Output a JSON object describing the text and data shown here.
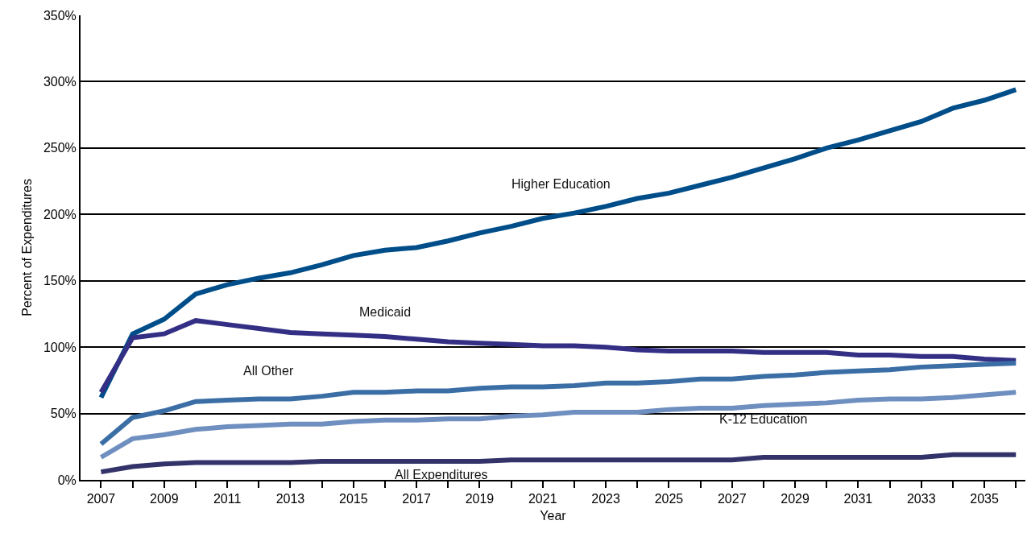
{
  "chart_data": {
    "type": "line",
    "xlabel": "Year",
    "ylabel": "Percent of Expenditures",
    "x": [
      2007,
      2008,
      2009,
      2010,
      2011,
      2012,
      2013,
      2014,
      2015,
      2016,
      2017,
      2018,
      2019,
      2020,
      2021,
      2022,
      2023,
      2024,
      2025,
      2026,
      2027,
      2028,
      2029,
      2030,
      2031,
      2032,
      2033,
      2034,
      2035,
      2036
    ],
    "series": [
      {
        "name": "Higher Education",
        "color": "#004e89",
        "values": [
          62,
          110,
          121,
          140,
          147,
          152,
          156,
          162,
          169,
          173,
          175,
          180,
          186,
          191,
          197,
          201,
          206,
          212,
          216,
          222,
          228,
          235,
          242,
          250,
          256,
          263,
          270,
          280,
          286,
          294
        ]
      },
      {
        "name": "Medicaid",
        "color": "#332f85",
        "values": [
          66,
          107,
          110,
          120,
          117,
          114,
          111,
          110,
          109,
          108,
          106,
          104,
          103,
          102,
          101,
          101,
          100,
          98,
          97,
          97,
          97,
          96,
          96,
          96,
          94,
          94,
          93,
          93,
          91,
          90
        ]
      },
      {
        "name": "All Other",
        "color": "#3a6ea5",
        "values": [
          27,
          47,
          52,
          59,
          60,
          61,
          61,
          63,
          66,
          66,
          67,
          67,
          69,
          70,
          70,
          71,
          73,
          73,
          74,
          76,
          76,
          78,
          79,
          81,
          82,
          83,
          85,
          86,
          87,
          88
        ]
      },
      {
        "name": "K-12 Education",
        "color": "#6e8fbf",
        "values": [
          17,
          31,
          34,
          38,
          40,
          41,
          42,
          42,
          44,
          45,
          45,
          46,
          46,
          48,
          49,
          51,
          51,
          51,
          53,
          54,
          54,
          56,
          57,
          58,
          60,
          61,
          61,
          62,
          64,
          66
        ]
      },
      {
        "name": "All Expenditures",
        "color": "#33336a",
        "values": [
          6,
          10,
          12,
          13,
          13,
          13,
          13,
          14,
          14,
          14,
          14,
          14,
          14,
          15,
          15,
          15,
          15,
          15,
          15,
          15,
          15,
          17,
          17,
          17,
          17,
          17,
          17,
          19,
          19,
          19
        ]
      }
    ],
    "xlim": [
      2006.35,
      2036.3
    ],
    "xticks": [
      2007,
      {
        "value": 2008,
        "label": null
      },
      2009,
      {
        "value": 2010,
        "label": null
      },
      2011,
      {
        "value": 2012,
        "label": null
      },
      2013,
      {
        "value": 2014,
        "label": null
      },
      2015,
      {
        "value": 2016,
        "label": null
      },
      2017,
      {
        "value": 2018,
        "label": null
      },
      2019,
      {
        "value": 2020,
        "label": null
      },
      2021,
      {
        "value": 2022,
        "label": null
      },
      2023,
      {
        "value": 2024,
        "label": null
      },
      2025,
      {
        "value": 2026,
        "label": null
      },
      2027,
      {
        "value": 2028,
        "label": null
      },
      2029,
      {
        "value": 2030,
        "label": null
      },
      2031,
      {
        "value": 2032,
        "label": null
      },
      2033,
      {
        "value": 2034,
        "label": null
      },
      2035,
      {
        "value": 2036,
        "label": null
      }
    ],
    "ylim": [
      0,
      350
    ],
    "yticks": [
      {
        "value": 0,
        "label": "0%"
      },
      {
        "value": 50,
        "label": "50%"
      },
      {
        "value": 100,
        "label": "100%"
      },
      {
        "value": 150,
        "label": "150%"
      },
      {
        "value": 200,
        "label": "200%"
      },
      {
        "value": 250,
        "label": "250%"
      },
      {
        "value": 300,
        "label": "300%"
      },
      {
        "value": 350,
        "label": "350%"
      }
    ],
    "grid": "y",
    "legend": false,
    "marker": "none",
    "line_style": "solid"
  }
}
